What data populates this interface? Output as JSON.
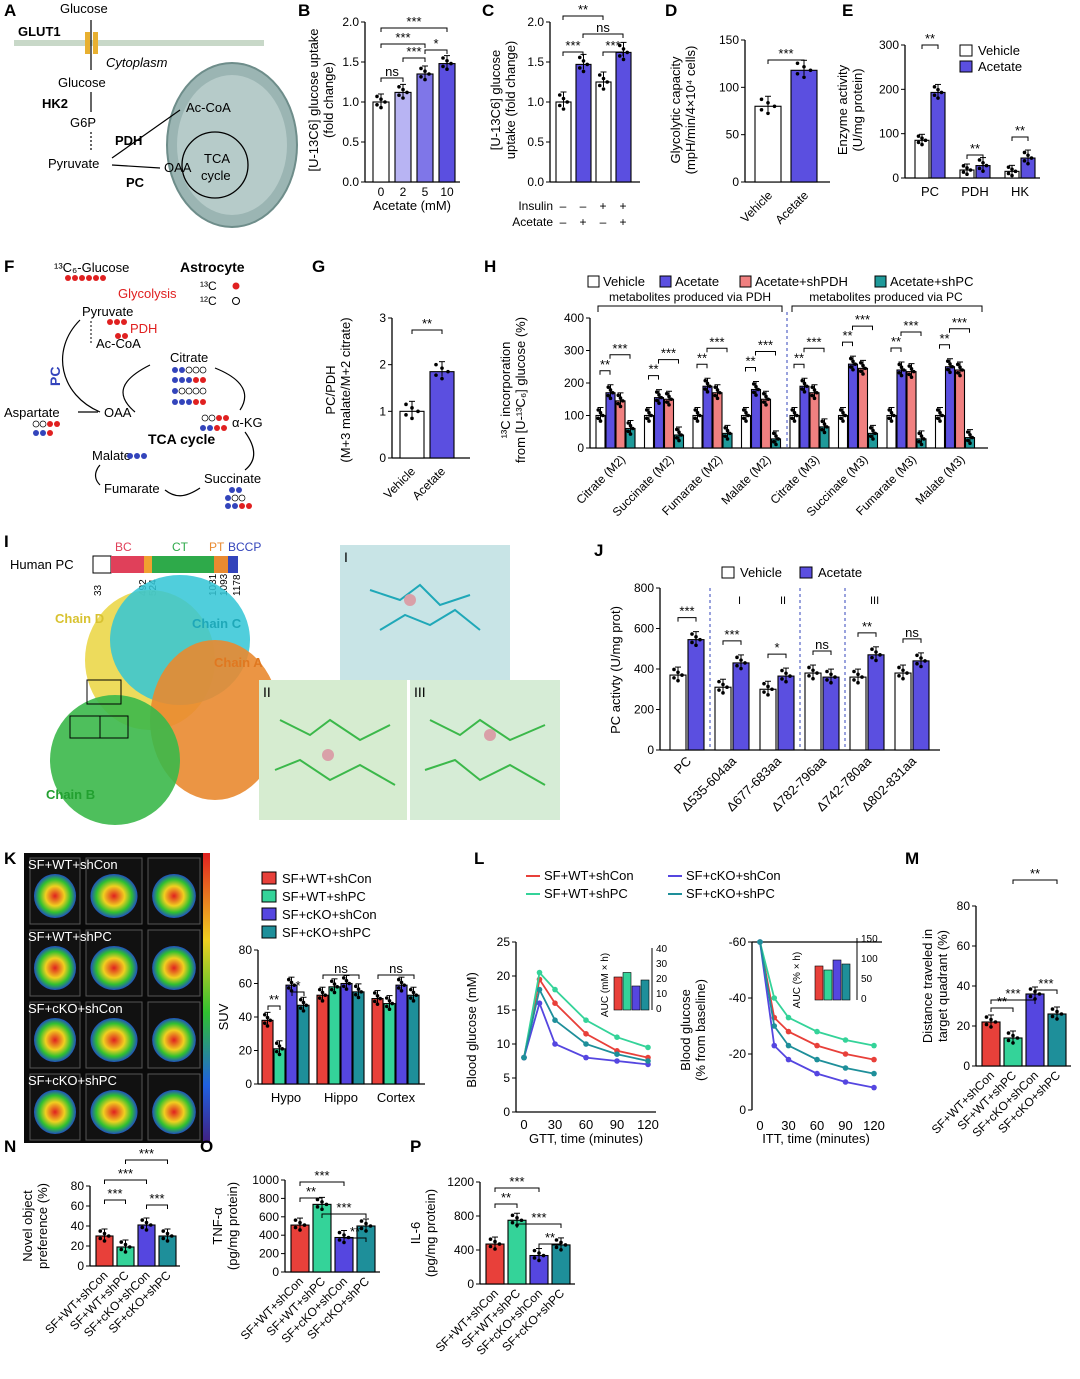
{
  "colors": {
    "vehicle": "#ffffff",
    "acetate": "#5b4fe0",
    "acetate_light2": "#b8b4f3",
    "acetate_mid5": "#7f76e8",
    "shpdh": "#f08080",
    "shpc": "#1f9a9a",
    "wt_shcon": "#e8403a",
    "wt_shpc": "#34d399",
    "cko_shcon": "#5546e0",
    "cko_shpc": "#1e8f9a",
    "mito": "#9bb5b3",
    "red_text": "#e02020",
    "blue_text": "#3344bb"
  },
  "panels": {
    "A": {
      "letter": "A",
      "glucose_top": "Glucose",
      "glut1": "GLUT1",
      "cytoplasm": "Cytoplasm",
      "glucose": "Glucose",
      "hk2": "HK2",
      "g6p": "G6P",
      "pyruvate": "Pyruvate",
      "pdh": "PDH",
      "pc": "PC",
      "acoa": "Ac-CoA",
      "oaa": "OAA",
      "tca1": "TCA",
      "tca2": "cycle"
    },
    "B": {
      "letter": "B",
      "ylabel": "[U-13C6] glucose uptake",
      "ylabel2": "(fold change)",
      "xlabel": "Acetate (mM)",
      "cats": [
        "0",
        "2",
        "5",
        "10"
      ],
      "values": [
        1.0,
        1.12,
        1.35,
        1.48
      ],
      "yticks": [
        "0.0",
        "0.5",
        "1.0",
        "1.5",
        "2.0"
      ],
      "sig": [
        "ns",
        "***",
        "***",
        "***",
        "*"
      ]
    },
    "C": {
      "letter": "C",
      "ylabel": "[U-13C6] glucose",
      "ylabel2": "uptake (fold change)",
      "insulin": "Insulin",
      "acetate": "Acetate",
      "ins_vals": [
        "–",
        "–",
        "+",
        "+"
      ],
      "ace_vals": [
        "–",
        "+",
        "–",
        "+"
      ],
      "values": [
        1.0,
        1.47,
        1.25,
        1.62
      ],
      "yticks": [
        "0.0",
        "0.5",
        "1.0",
        "1.5",
        "2.0"
      ],
      "sig": [
        "**",
        "***",
        "ns",
        "***"
      ]
    },
    "D": {
      "letter": "D",
      "ylabel": "Glycolytic capacity",
      "ylabel2": "(mpH/min/4×10⁴ cells)",
      "cats": [
        "Vehicle",
        "Acetate"
      ],
      "values": [
        80,
        118
      ],
      "yticks": [
        "0",
        "50",
        "100",
        "150"
      ],
      "sig": "***"
    },
    "E": {
      "letter": "E",
      "ylabel": "Enzyme activity",
      "ylabel2": "(U/mg protein)",
      "cats": [
        "PC",
        "PDH",
        "HK"
      ],
      "vehicle": [
        85,
        18,
        15
      ],
      "acetate": [
        193,
        28,
        45
      ],
      "yticks": [
        "0",
        "100",
        "200",
        "300"
      ],
      "legend": [
        "Vehicle",
        "Acetate"
      ],
      "sig": [
        "**",
        "**",
        "**"
      ]
    },
    "F": {
      "letter": "F",
      "glucose": "¹³C₆-Glucose",
      "astrocyte": "Astrocyte",
      "c13": "¹³C",
      "c12": "¹²C",
      "glycolysis": "Glycolysis",
      "pyruvate": "Pyruvate",
      "pdh": "PDH",
      "acoa": "Ac-CoA",
      "citrate": "Citrate",
      "pc": "PC",
      "aspartate": "Aspartate",
      "oaa": "OAA",
      "akg": "α-KG",
      "tca": "TCA cycle",
      "malate": "Malate",
      "succinate": "Succinate",
      "fumarate": "Fumarate"
    },
    "G": {
      "letter": "G",
      "ylabel": "PC/PDH",
      "ylabel2": "(M+3 malate/M+2 citrate)",
      "cats": [
        "Vehicle",
        "Acetate"
      ],
      "values": [
        1.0,
        1.85
      ],
      "yticks": [
        "0",
        "1",
        "2",
        "3"
      ],
      "sig": "**"
    },
    "H": {
      "letter": "H",
      "legend": [
        "Vehicle",
        "Acetate",
        "Acetate+shPDH",
        "Acetate+shPC"
      ],
      "group1": "metabolites produced via PDH",
      "group2": "metabolites produced via PC",
      "ylabel": "¹³C incorporation",
      "ylabel2": "from [U-¹³C₆] glucose (%)",
      "cats": [
        "Citrate (M2)",
        "Succinate (M2)",
        "Fumarate (M2)",
        "Malate (M2)",
        "Citrate (M3)",
        "Succinate (M3)",
        "Fumarate (M3)",
        "Malate (M3)"
      ],
      "series": [
        [
          100,
          100,
          100,
          100,
          100,
          100,
          100,
          100
        ],
        [
          170,
          155,
          190,
          180,
          190,
          258,
          240,
          250
        ],
        [
          145,
          150,
          170,
          150,
          170,
          245,
          235,
          240
        ],
        [
          60,
          40,
          45,
          28,
          65,
          45,
          28,
          32
        ]
      ],
      "yticks": [
        "0",
        "100",
        "200",
        "300",
        "400"
      ]
    },
    "I": {
      "letter": "I",
      "human_pc": "Human PC",
      "domains": [
        "BC",
        "CT",
        "PT",
        "BCCP"
      ],
      "nums": [
        "33",
        "492",
        "524",
        "1031",
        "1093",
        "1178"
      ],
      "chains": [
        "Chain D",
        "Chain C",
        "Chain A",
        "Chain B"
      ],
      "inset1": "I",
      "inset2": "II",
      "inset3": "III"
    },
    "J": {
      "letter": "J",
      "legend": [
        "Vehicle",
        "Acetate"
      ],
      "ylabel": "PC activty (U/mg prot)",
      "cats": [
        "PC",
        "Δ535-604aa",
        "Δ677-683aa",
        "Δ782-796aa",
        "Δ742-780aa",
        "Δ802-831aa"
      ],
      "vehicle": [
        370,
        310,
        300,
        380,
        360,
        380
      ],
      "acetate": [
        545,
        430,
        365,
        360,
        470,
        440
      ],
      "yticks": [
        "0",
        "200",
        "400",
        "600",
        "800"
      ],
      "sig": [
        "***",
        "***",
        "*",
        "ns",
        "**",
        "ns"
      ],
      "romans": [
        "I",
        "II",
        "III"
      ]
    },
    "K": {
      "letter": "K",
      "labels": [
        "SF+WT+shCon",
        "SF+WT+shPC",
        "SF+cKO+shCon",
        "SF+cKO+shPC"
      ],
      "ylabel": "SUV",
      "cats": [
        "Hypo",
        "Hippo",
        "Cortex"
      ],
      "series": [
        [
          38,
          53,
          51
        ],
        [
          21,
          58,
          48
        ],
        [
          59,
          60,
          59
        ],
        [
          47,
          55,
          53
        ]
      ],
      "yticks": [
        "0",
        "20",
        "40",
        "60",
        "80"
      ],
      "sig": [
        "**",
        "*",
        "ns",
        "ns"
      ]
    },
    "L": {
      "letter": "L",
      "legend": [
        "SF+WT+shCon",
        "SF+WT+shPC",
        "SF+cKO+shCon",
        "SF+cKO+shPC"
      ],
      "gtt_ylabel": "Blood glucose (mM)",
      "gtt_xlabel": "GTT, time  (minutes)",
      "itt_ylabel": "Blood glucose",
      "itt_ylabel2": "(% from baseline)",
      "itt_xlabel": "ITT, time (minutes)",
      "x": [
        0,
        15,
        30,
        60,
        90,
        120
      ],
      "gtt": [
        [
          8,
          19.5,
          16,
          11.5,
          9,
          8
        ],
        [
          8,
          20.5,
          18,
          13.5,
          11,
          9.5
        ],
        [
          8,
          16,
          10,
          8,
          7.5,
          7
        ],
        [
          8,
          18,
          13.5,
          10,
          8.5,
          7.5
        ]
      ],
      "itt": [
        [
          0,
          -27,
          -32,
          -37,
          -40,
          -42
        ],
        [
          0,
          -20,
          -27,
          -32,
          -35,
          -37
        ],
        [
          0,
          -37,
          -42,
          -47,
          -50,
          -52
        ],
        [
          0,
          -30,
          -37,
          -42,
          -45,
          -47
        ]
      ],
      "gtt_yticks": [
        "0",
        "5",
        "10",
        "15",
        "20",
        "25"
      ],
      "itt_yticks": [
        "0",
        "-20",
        "-40",
        "-60"
      ],
      "xticks": [
        "0",
        "30",
        "60",
        "90",
        "120"
      ],
      "auc1": "AUC (mM × h)",
      "auc2": "AUC (% × h)",
      "auc1_ticks": [
        "0",
        "10",
        "20",
        "30",
        "40"
      ],
      "auc2_ticks": [
        "0",
        "50",
        "100",
        "150"
      ]
    },
    "M": {
      "letter": "M",
      "ylabel": "Distance traveled in",
      "ylabel2": "target quadrant (%)",
      "cats": [
        "SF+WT+shCon",
        "SF+WT+shPC",
        "SF+cKO+shCon",
        "SF+cKO+shPC"
      ],
      "values": [
        22,
        14,
        36,
        26
      ],
      "yticks": [
        "0",
        "20",
        "40",
        "60",
        "80"
      ],
      "sig": [
        "**",
        "***",
        "**",
        "***"
      ]
    },
    "N": {
      "letter": "N",
      "ylabel": "Novel object",
      "ylabel2": "preference (%)",
      "cats": [
        "SF+WT+shCon",
        "SF+WT+shPC",
        "SF+cKO+shCon",
        "SF+cKO+shPC"
      ],
      "values": [
        30,
        19,
        41,
        30
      ],
      "yticks": [
        "0",
        "20",
        "40",
        "60",
        "80"
      ],
      "sig": [
        "***",
        "***",
        "***",
        "***"
      ]
    },
    "O": {
      "letter": "O",
      "ylabel": "TNF-α",
      "ylabel2": "(pg/mg protein)",
      "cats": [
        "SF+WT+shCon",
        "SF+WT+shPC",
        "SF+cKO+shCon",
        "SF+cKO+shPC"
      ],
      "values": [
        510,
        735,
        375,
        500
      ],
      "yticks": [
        "0",
        "200",
        "400",
        "600",
        "800",
        "1000"
      ],
      "sig": [
        "**",
        "***",
        "***",
        "**"
      ]
    },
    "P": {
      "letter": "P",
      "ylabel": "IL-6",
      "ylabel2": "(pg/mg protein)",
      "cats": [
        "SF+WT+shCon",
        "SF+WT+shPC",
        "SF+cKO+shCon",
        "SF+cKO+shPC"
      ],
      "values": [
        470,
        750,
        335,
        460
      ],
      "yticks": [
        "0",
        "400",
        "800",
        "1200"
      ],
      "sig": [
        "**",
        "***",
        "***",
        "**"
      ]
    }
  }
}
